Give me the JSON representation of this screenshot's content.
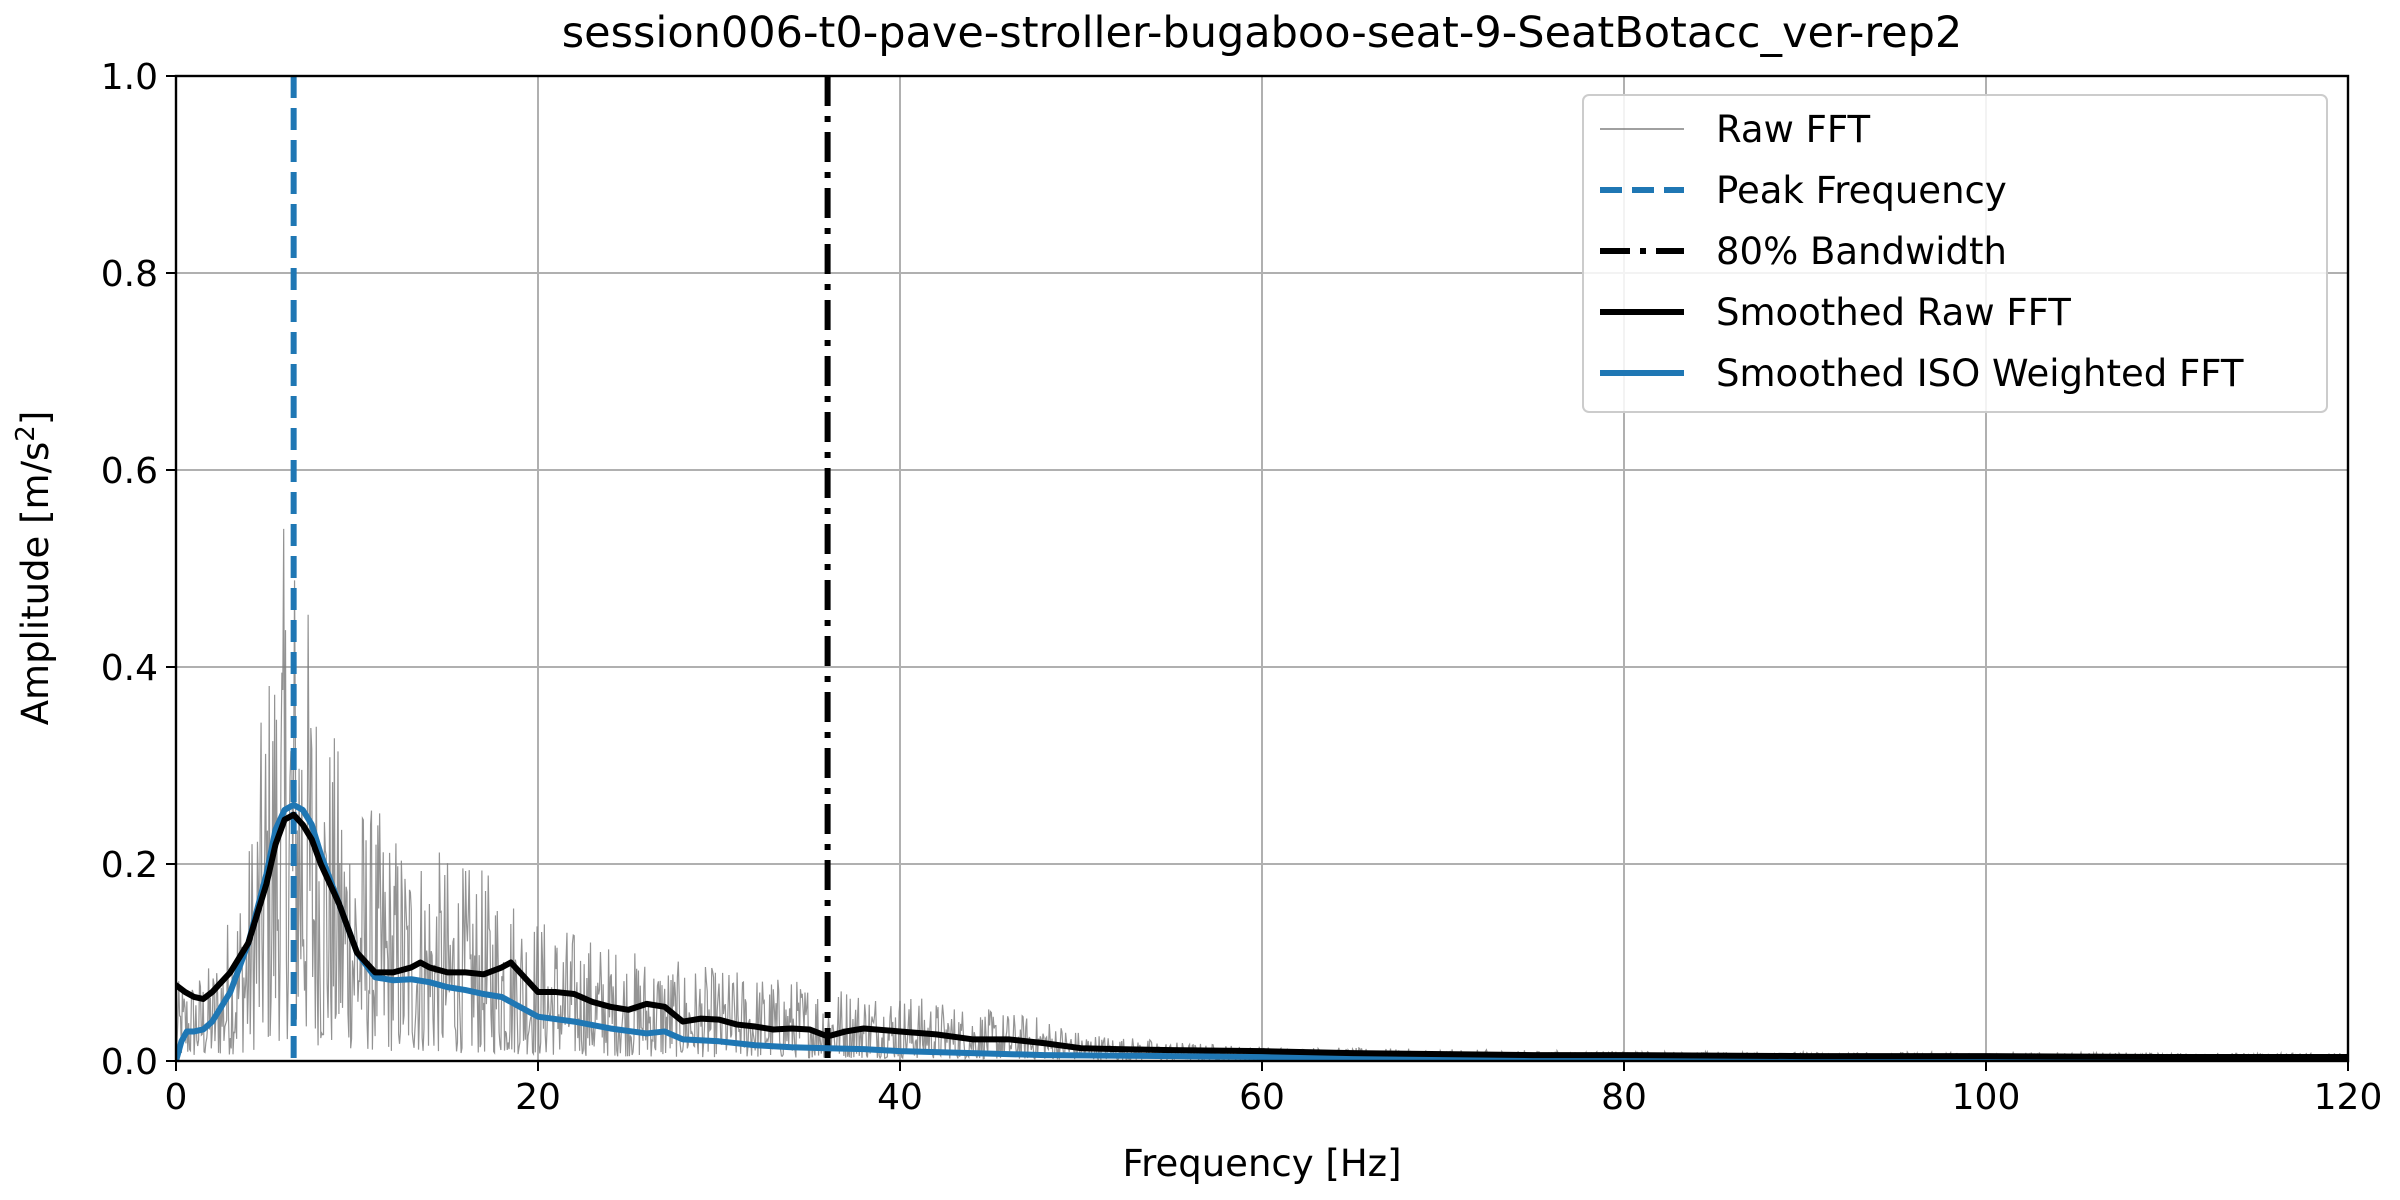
{
  "chart_data": {
    "type": "line",
    "title": "session006-t0-pave-stroller-bugaboo-seat-9-SeatBotacc_ver-rep2",
    "xlabel": "Frequency [Hz]",
    "ylabel": "Amplitude [m/s",
    "ylabel_sup": "2",
    "ylabel_end": "]",
    "xlim": [
      0,
      120
    ],
    "ylim": [
      0,
      1.0
    ],
    "xticks": [
      0,
      20,
      40,
      60,
      80,
      100,
      120
    ],
    "xtick_labels": [
      "0",
      "20",
      "40",
      "60",
      "80",
      "100",
      "120"
    ],
    "yticks": [
      0.0,
      0.2,
      0.4,
      0.6,
      0.8,
      1.0
    ],
    "ytick_labels": [
      "0.0",
      "0.2",
      "0.4",
      "0.6",
      "0.8",
      "1.0"
    ],
    "grid": true,
    "legend_position": "upper right",
    "legend": [
      {
        "label": "Raw FFT",
        "style": "thin-solid",
        "color": "#808080"
      },
      {
        "label": "Peak Frequency",
        "style": "dashed",
        "color": "#1f77b4"
      },
      {
        "label": "80% Bandwidth",
        "style": "dashdot",
        "color": "#000000"
      },
      {
        "label": "Smoothed Raw FFT",
        "style": "thick-solid",
        "color": "#000000"
      },
      {
        "label": "Smoothed ISO Weighted FFT",
        "style": "thick-solid",
        "color": "#1f77b4"
      }
    ],
    "vlines": [
      {
        "name": "Peak Frequency",
        "x": 6.5,
        "color": "#1f77b4",
        "style": "dashed"
      },
      {
        "name": "80% Bandwidth",
        "x": 36.0,
        "color": "#000000",
        "style": "dashdot"
      }
    ],
    "series": [
      {
        "name": "Smoothed Raw FFT",
        "color": "#000000",
        "x": [
          0,
          0.5,
          1,
          1.5,
          2,
          3,
          4,
          5,
          5.5,
          6,
          6.5,
          7,
          7.5,
          8,
          9,
          10,
          11,
          12,
          13,
          13.5,
          14,
          15,
          16,
          17,
          18,
          18.5,
          19,
          20,
          21,
          22,
          23,
          24,
          25,
          26,
          27,
          28,
          29,
          30,
          31,
          32,
          33,
          34,
          35,
          36,
          37,
          38,
          40,
          42,
          44,
          46,
          48,
          50,
          52,
          55,
          60,
          65,
          70,
          75,
          80,
          90,
          100,
          110,
          120
        ],
        "y": [
          0.077,
          0.07,
          0.065,
          0.063,
          0.07,
          0.09,
          0.12,
          0.18,
          0.22,
          0.245,
          0.25,
          0.24,
          0.225,
          0.2,
          0.16,
          0.11,
          0.09,
          0.09,
          0.095,
          0.1,
          0.095,
          0.09,
          0.09,
          0.088,
          0.095,
          0.1,
          0.09,
          0.07,
          0.07,
          0.068,
          0.06,
          0.055,
          0.052,
          0.058,
          0.055,
          0.04,
          0.043,
          0.042,
          0.037,
          0.035,
          0.032,
          0.033,
          0.032,
          0.025,
          0.03,
          0.033,
          0.03,
          0.027,
          0.022,
          0.022,
          0.018,
          0.013,
          0.012,
          0.011,
          0.01,
          0.008,
          0.007,
          0.006,
          0.006,
          0.005,
          0.005,
          0.004,
          0.004
        ]
      },
      {
        "name": "Smoothed ISO Weighted FFT",
        "color": "#1f77b4",
        "x": [
          0,
          0.3,
          0.6,
          1,
          1.5,
          2,
          3,
          4,
          5,
          5.5,
          6,
          6.5,
          7,
          7.5,
          8,
          9,
          10,
          11,
          12,
          13,
          14,
          15,
          16,
          17,
          18,
          19,
          20,
          22,
          24,
          26,
          27,
          28,
          30,
          32,
          34,
          36,
          38,
          40,
          44,
          48,
          55,
          60,
          70,
          80,
          100,
          120
        ],
        "y": [
          0.0,
          0.02,
          0.03,
          0.03,
          0.032,
          0.04,
          0.07,
          0.12,
          0.19,
          0.235,
          0.255,
          0.26,
          0.255,
          0.24,
          0.21,
          0.16,
          0.11,
          0.085,
          0.082,
          0.083,
          0.08,
          0.075,
          0.072,
          0.068,
          0.065,
          0.055,
          0.045,
          0.04,
          0.033,
          0.028,
          0.03,
          0.022,
          0.02,
          0.016,
          0.014,
          0.013,
          0.012,
          0.01,
          0.008,
          0.006,
          0.005,
          0.004,
          0.004,
          0.003,
          0.003,
          0.003
        ]
      }
    ],
    "raw_fft_envelope": {
      "name": "Raw FFT",
      "color": "#808080",
      "x": [
        0,
        2,
        4,
        5,
        6,
        6.5,
        7,
        8,
        10,
        12,
        14,
        16,
        18,
        20,
        24,
        28,
        32,
        36,
        40,
        44,
        48,
        50,
        55,
        60,
        70,
        80,
        100,
        120
      ],
      "y": [
        0.08,
        0.1,
        0.22,
        0.4,
        0.55,
        0.56,
        0.52,
        0.37,
        0.28,
        0.24,
        0.22,
        0.2,
        0.19,
        0.15,
        0.12,
        0.1,
        0.09,
        0.08,
        0.07,
        0.055,
        0.045,
        0.03,
        0.02,
        0.015,
        0.012,
        0.01,
        0.009,
        0.008
      ]
    }
  }
}
